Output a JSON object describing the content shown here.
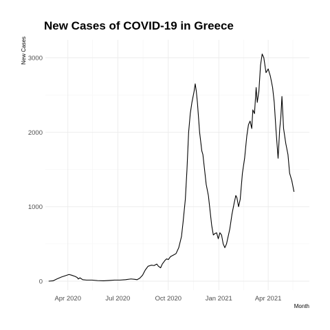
{
  "chart_data": {
    "type": "line",
    "title": "New Cases of COVID-19 in Greece",
    "xlabel": "Month",
    "ylabel": "New Cases",
    "x_ticks": [
      {
        "date": "2020-04-01",
        "label": "Apr 2020"
      },
      {
        "date": "2020-07-01",
        "label": "Jul 2020"
      },
      {
        "date": "2020-10-01",
        "label": "Oct 2020"
      },
      {
        "date": "2021-01-01",
        "label": "Jan 2021"
      },
      {
        "date": "2021-04-01",
        "label": "Apr 2021"
      }
    ],
    "x_minor_ticks": [
      "2020-05-16",
      "2020-08-16",
      "2020-11-16",
      "2021-02-15",
      "2021-05-16"
    ],
    "xlim": [
      "2020-02-20",
      "2021-06-15"
    ],
    "y_ticks": [
      0,
      1000,
      2000,
      3000
    ],
    "y_minor_ticks": [
      500,
      1500,
      2500
    ],
    "ylim": [
      -120,
      3240
    ],
    "grid": true,
    "series": [
      {
        "values": [
          [
            "2020-02-26",
            0
          ],
          [
            "2020-03-05",
            5
          ],
          [
            "2020-03-12",
            30
          ],
          [
            "2020-03-20",
            55
          ],
          [
            "2020-03-28",
            75
          ],
          [
            "2020-04-03",
            90
          ],
          [
            "2020-04-08",
            80
          ],
          [
            "2020-04-14",
            65
          ],
          [
            "2020-04-18",
            50
          ],
          [
            "2020-04-20",
            30
          ],
          [
            "2020-04-23",
            45
          ],
          [
            "2020-04-28",
            20
          ],
          [
            "2020-05-05",
            15
          ],
          [
            "2020-05-15",
            15
          ],
          [
            "2020-05-25",
            8
          ],
          [
            "2020-06-05",
            5
          ],
          [
            "2020-06-15",
            10
          ],
          [
            "2020-06-25",
            15
          ],
          [
            "2020-07-05",
            15
          ],
          [
            "2020-07-15",
            20
          ],
          [
            "2020-07-25",
            30
          ],
          [
            "2020-08-01",
            25
          ],
          [
            "2020-08-05",
            20
          ],
          [
            "2020-08-10",
            40
          ],
          [
            "2020-08-15",
            80
          ],
          [
            "2020-08-20",
            150
          ],
          [
            "2020-08-25",
            200
          ],
          [
            "2020-08-31",
            215
          ],
          [
            "2020-09-05",
            210
          ],
          [
            "2020-09-10",
            230
          ],
          [
            "2020-09-13",
            200
          ],
          [
            "2020-09-17",
            180
          ],
          [
            "2020-09-20",
            230
          ],
          [
            "2020-09-25",
            280
          ],
          [
            "2020-09-28",
            300
          ],
          [
            "2020-10-01",
            290
          ],
          [
            "2020-10-05",
            330
          ],
          [
            "2020-10-10",
            350
          ],
          [
            "2020-10-15",
            370
          ],
          [
            "2020-10-20",
            450
          ],
          [
            "2020-10-25",
            600
          ],
          [
            "2020-10-28",
            800
          ],
          [
            "2020-11-01",
            1100
          ],
          [
            "2020-11-04",
            1500
          ],
          [
            "2020-11-07",
            2000
          ],
          [
            "2020-11-10",
            2250
          ],
          [
            "2020-11-13",
            2400
          ],
          [
            "2020-11-17",
            2550
          ],
          [
            "2020-11-19",
            2650
          ],
          [
            "2020-11-21",
            2550
          ],
          [
            "2020-11-23",
            2400
          ],
          [
            "2020-11-27",
            2000
          ],
          [
            "2020-12-01",
            1750
          ],
          [
            "2020-12-03",
            1700
          ],
          [
            "2020-12-06",
            1500
          ],
          [
            "2020-12-09",
            1300
          ],
          [
            "2020-12-13",
            1150
          ],
          [
            "2020-12-16",
            950
          ],
          [
            "2020-12-19",
            750
          ],
          [
            "2020-12-22",
            620
          ],
          [
            "2020-12-25",
            640
          ],
          [
            "2020-12-28",
            650
          ],
          [
            "2020-12-31",
            570
          ],
          [
            "2021-01-03",
            650
          ],
          [
            "2021-01-06",
            620
          ],
          [
            "2021-01-09",
            500
          ],
          [
            "2021-01-12",
            450
          ],
          [
            "2021-01-15",
            500
          ],
          [
            "2021-01-18",
            600
          ],
          [
            "2021-01-21",
            700
          ],
          [
            "2021-01-25",
            900
          ],
          [
            "2021-01-29",
            1050
          ],
          [
            "2021-02-01",
            1150
          ],
          [
            "2021-02-03",
            1120
          ],
          [
            "2021-02-06",
            1000
          ],
          [
            "2021-02-09",
            1100
          ],
          [
            "2021-02-13",
            1450
          ],
          [
            "2021-02-17",
            1650
          ],
          [
            "2021-02-21",
            1950
          ],
          [
            "2021-02-24",
            2100
          ],
          [
            "2021-02-27",
            2150
          ],
          [
            "2021-03-02",
            2050
          ],
          [
            "2021-03-04",
            2300
          ],
          [
            "2021-03-07",
            2250
          ],
          [
            "2021-03-10",
            2600
          ],
          [
            "2021-03-12",
            2400
          ],
          [
            "2021-03-15",
            2550
          ],
          [
            "2021-03-18",
            2900
          ],
          [
            "2021-03-21",
            3050
          ],
          [
            "2021-03-24",
            3000
          ],
          [
            "2021-03-28",
            2800
          ],
          [
            "2021-04-01",
            2850
          ],
          [
            "2021-04-05",
            2750
          ],
          [
            "2021-04-09",
            2600
          ],
          [
            "2021-04-12",
            2400
          ],
          [
            "2021-04-15",
            2050
          ],
          [
            "2021-04-17",
            1850
          ],
          [
            "2021-04-19",
            1650
          ],
          [
            "2021-04-22",
            2050
          ],
          [
            "2021-04-24",
            2200
          ],
          [
            "2021-04-26",
            2480
          ],
          [
            "2021-04-29",
            2050
          ],
          [
            "2021-05-03",
            1850
          ],
          [
            "2021-05-07",
            1700
          ],
          [
            "2021-05-10",
            1450
          ],
          [
            "2021-05-14",
            1350
          ],
          [
            "2021-05-18",
            1200
          ]
        ]
      }
    ]
  }
}
